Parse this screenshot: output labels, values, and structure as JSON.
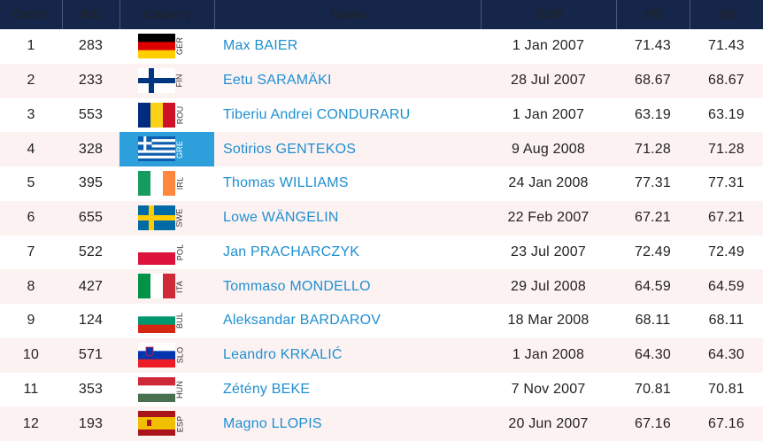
{
  "table": {
    "headers": [
      "Order",
      "Bib",
      "Country",
      "Name",
      "DOB",
      "PB",
      "SB"
    ],
    "rows": [
      [
        "1",
        "283",
        "GER",
        "Max BAIER",
        "1 Jan 2007",
        "71.43",
        "71.43"
      ],
      [
        "2",
        "233",
        "FIN",
        "Eetu SARAMÄKI",
        "28 Jul 2007",
        "68.67",
        "68.67"
      ],
      [
        "3",
        "553",
        "ROU",
        "Tiberiu Andrei CONDURARU",
        "1 Jan 2007",
        "63.19",
        "63.19"
      ],
      [
        "4",
        "328",
        "GRE",
        "Sotirios GENTEKOS",
        "9 Aug 2008",
        "71.28",
        "71.28"
      ],
      [
        "5",
        "395",
        "IRL",
        "Thomas WILLIAMS",
        "24 Jan 2008",
        "77.31",
        "77.31"
      ],
      [
        "6",
        "655",
        "SWE",
        "Lowe WÄNGELIN",
        "22 Feb 2007",
        "67.21",
        "67.21"
      ],
      [
        "7",
        "522",
        "POL",
        "Jan PRACHARCZYK",
        "23 Jul 2007",
        "72.49",
        "72.49"
      ],
      [
        "8",
        "427",
        "ITA",
        "Tommaso MONDELLO",
        "29 Jul 2008",
        "64.59",
        "64.59"
      ],
      [
        "9",
        "124",
        "BUL",
        "Aleksandar BARDAROV",
        "18 Mar 2008",
        "68.11",
        "68.11"
      ],
      [
        "10",
        "571",
        "SLO",
        "Leandro KRKALIĆ",
        "1 Jan 2008",
        "64.30",
        "64.30"
      ],
      [
        "11",
        "353",
        "HUN",
        "Zétény BEKE",
        "7 Nov 2007",
        "70.81",
        "70.81"
      ],
      [
        "12",
        "193",
        "ESP",
        "Magno LLOPIS",
        "20 Jun 2007",
        "67.16",
        "67.16"
      ]
    ]
  }
}
